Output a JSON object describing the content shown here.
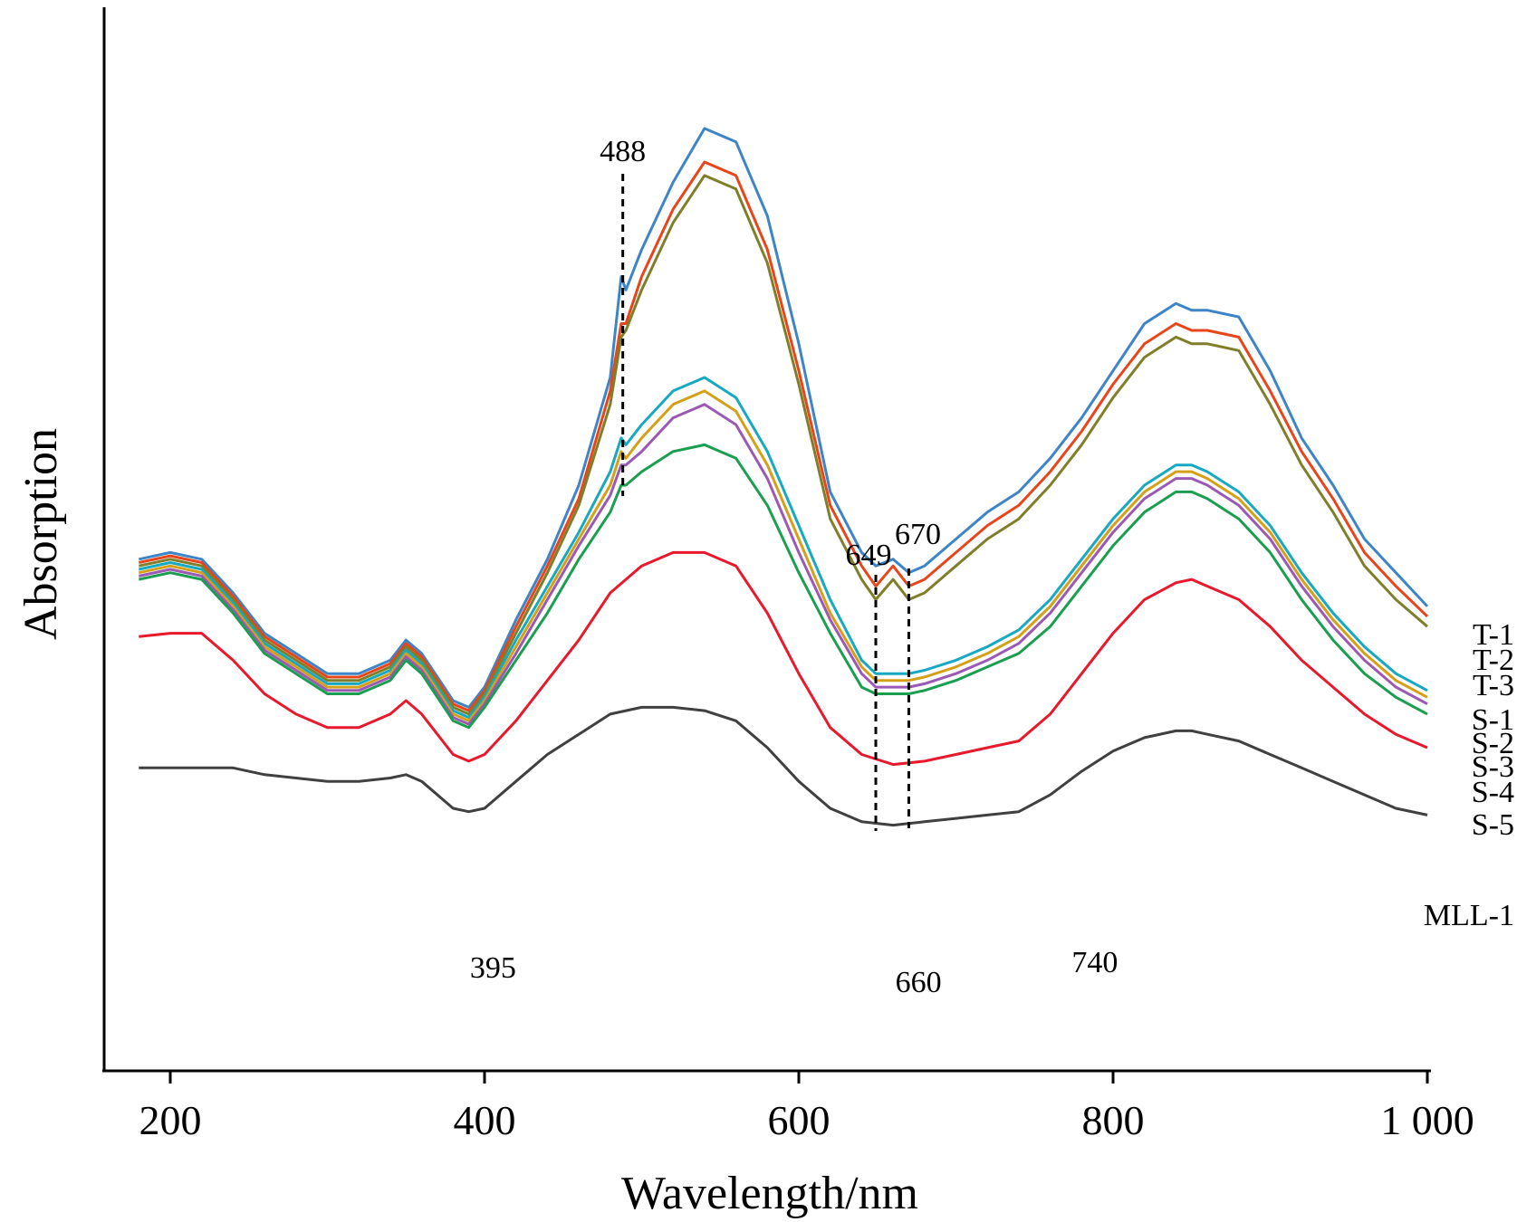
{
  "chart_data": {
    "type": "line",
    "title": "",
    "xlabel": "Wavelength/nm",
    "ylabel": "Absorption",
    "xlim": [
      180,
      1000
    ],
    "xticks": [
      200,
      400,
      600,
      800,
      1000
    ],
    "xtick_labels": [
      "200",
      "400",
      "600",
      "800",
      "1 000"
    ],
    "y_ticks_shown": false,
    "ylim": [
      -0.1,
      1.48
    ],
    "grid": false,
    "legend": "labels at right end of each curve",
    "series": [
      {
        "name": "T-1",
        "color": "#3d85c6",
        "x": [
          180,
          200,
          220,
          240,
          260,
          280,
          300,
          320,
          340,
          350,
          360,
          380,
          390,
          400,
          420,
          440,
          460,
          480,
          487,
          490,
          500,
          520,
          540,
          560,
          580,
          600,
          620,
          640,
          649,
          660,
          670,
          680,
          700,
          720,
          740,
          760,
          780,
          800,
          820,
          840,
          850,
          860,
          880,
          900,
          920,
          940,
          960,
          980,
          1000
        ],
        "y": [
          0.66,
          0.67,
          0.66,
          0.61,
          0.55,
          0.52,
          0.49,
          0.49,
          0.51,
          0.54,
          0.52,
          0.45,
          0.44,
          0.47,
          0.57,
          0.66,
          0.77,
          0.93,
          1.08,
          1.06,
          1.12,
          1.22,
          1.3,
          1.28,
          1.17,
          0.98,
          0.76,
          0.67,
          0.65,
          0.66,
          0.64,
          0.65,
          0.69,
          0.73,
          0.76,
          0.81,
          0.87,
          0.94,
          1.01,
          1.04,
          1.03,
          1.03,
          1.02,
          0.94,
          0.84,
          0.77,
          0.69,
          0.64,
          0.59
        ]
      },
      {
        "name": "T-2",
        "color": "#e8461a",
        "x": [
          180,
          200,
          220,
          240,
          260,
          280,
          300,
          320,
          340,
          350,
          360,
          380,
          390,
          400,
          420,
          440,
          460,
          480,
          487,
          490,
          500,
          520,
          540,
          560,
          580,
          600,
          620,
          640,
          649,
          660,
          670,
          680,
          700,
          720,
          740,
          760,
          780,
          800,
          820,
          840,
          850,
          860,
          880,
          900,
          920,
          940,
          960,
          980,
          1000
        ],
        "y": [
          0.655,
          0.665,
          0.655,
          0.605,
          0.545,
          0.515,
          0.485,
          0.485,
          0.505,
          0.535,
          0.515,
          0.445,
          0.435,
          0.465,
          0.56,
          0.65,
          0.75,
          0.91,
          1.01,
          1.01,
          1.08,
          1.18,
          1.25,
          1.23,
          1.12,
          0.94,
          0.74,
          0.65,
          0.62,
          0.65,
          0.62,
          0.63,
          0.67,
          0.71,
          0.74,
          0.79,
          0.85,
          0.92,
          0.98,
          1.01,
          1.0,
          1.0,
          0.99,
          0.91,
          0.82,
          0.75,
          0.67,
          0.62,
          0.575
        ]
      },
      {
        "name": "T-3",
        "color": "#7f7f2a",
        "x": [
          180,
          200,
          220,
          240,
          260,
          280,
          300,
          320,
          340,
          350,
          360,
          380,
          390,
          400,
          420,
          440,
          460,
          480,
          487,
          490,
          500,
          520,
          540,
          560,
          580,
          600,
          620,
          640,
          649,
          660,
          670,
          680,
          700,
          720,
          740,
          760,
          780,
          800,
          820,
          840,
          850,
          860,
          880,
          900,
          920,
          940,
          960,
          980,
          1000
        ],
        "y": [
          0.65,
          0.66,
          0.65,
          0.6,
          0.54,
          0.51,
          0.48,
          0.48,
          0.5,
          0.53,
          0.51,
          0.44,
          0.43,
          0.46,
          0.55,
          0.64,
          0.74,
          0.89,
          0.99,
          1.0,
          1.06,
          1.16,
          1.23,
          1.21,
          1.1,
          0.92,
          0.72,
          0.63,
          0.6,
          0.63,
          0.6,
          0.61,
          0.65,
          0.69,
          0.72,
          0.77,
          0.83,
          0.9,
          0.96,
          0.99,
          0.98,
          0.98,
          0.97,
          0.89,
          0.8,
          0.73,
          0.65,
          0.6,
          0.56
        ]
      },
      {
        "name": "S-1",
        "color": "#17a9c2",
        "x": [
          180,
          200,
          220,
          240,
          260,
          280,
          300,
          320,
          340,
          350,
          360,
          380,
          390,
          400,
          420,
          440,
          460,
          480,
          487,
          490,
          500,
          520,
          540,
          560,
          580,
          600,
          620,
          640,
          649,
          660,
          670,
          680,
          700,
          720,
          740,
          760,
          780,
          800,
          820,
          840,
          850,
          860,
          880,
          900,
          920,
          940,
          960,
          980,
          1000
        ],
        "y": [
          0.645,
          0.655,
          0.645,
          0.595,
          0.535,
          0.505,
          0.475,
          0.475,
          0.495,
          0.525,
          0.505,
          0.435,
          0.425,
          0.455,
          0.54,
          0.62,
          0.7,
          0.79,
          0.84,
          0.83,
          0.86,
          0.91,
          0.93,
          0.9,
          0.82,
          0.71,
          0.6,
          0.51,
          0.49,
          0.49,
          0.49,
          0.495,
          0.51,
          0.53,
          0.555,
          0.6,
          0.66,
          0.72,
          0.77,
          0.8,
          0.8,
          0.79,
          0.76,
          0.71,
          0.64,
          0.58,
          0.53,
          0.49,
          0.465
        ]
      },
      {
        "name": "S-2",
        "color": "#d4a017",
        "x": [
          180,
          200,
          220,
          240,
          260,
          280,
          300,
          320,
          340,
          350,
          360,
          380,
          390,
          400,
          420,
          440,
          460,
          480,
          487,
          490,
          500,
          520,
          540,
          560,
          580,
          600,
          620,
          640,
          649,
          660,
          670,
          680,
          700,
          720,
          740,
          760,
          780,
          800,
          820,
          840,
          850,
          860,
          880,
          900,
          920,
          940,
          960,
          980,
          1000
        ],
        "y": [
          0.64,
          0.65,
          0.64,
          0.59,
          0.53,
          0.5,
          0.47,
          0.47,
          0.49,
          0.52,
          0.5,
          0.43,
          0.42,
          0.45,
          0.53,
          0.61,
          0.69,
          0.77,
          0.82,
          0.81,
          0.84,
          0.89,
          0.91,
          0.88,
          0.8,
          0.69,
          0.58,
          0.5,
          0.48,
          0.48,
          0.48,
          0.485,
          0.5,
          0.52,
          0.545,
          0.59,
          0.65,
          0.71,
          0.76,
          0.79,
          0.79,
          0.78,
          0.75,
          0.7,
          0.63,
          0.57,
          0.52,
          0.48,
          0.455
        ]
      },
      {
        "name": "S-3",
        "color": "#9b59b6",
        "x": [
          180,
          200,
          220,
          240,
          260,
          280,
          300,
          320,
          340,
          350,
          360,
          380,
          390,
          400,
          420,
          440,
          460,
          480,
          487,
          490,
          500,
          520,
          540,
          560,
          580,
          600,
          620,
          640,
          649,
          660,
          670,
          680,
          700,
          720,
          740,
          760,
          780,
          800,
          820,
          840,
          850,
          860,
          880,
          900,
          920,
          940,
          960,
          980,
          1000
        ],
        "y": [
          0.635,
          0.645,
          0.635,
          0.585,
          0.525,
          0.495,
          0.465,
          0.465,
          0.485,
          0.515,
          0.495,
          0.425,
          0.415,
          0.445,
          0.52,
          0.6,
          0.68,
          0.755,
          0.8,
          0.8,
          0.82,
          0.87,
          0.89,
          0.86,
          0.78,
          0.67,
          0.57,
          0.49,
          0.47,
          0.47,
          0.47,
          0.475,
          0.49,
          0.51,
          0.535,
          0.58,
          0.64,
          0.7,
          0.75,
          0.78,
          0.78,
          0.77,
          0.74,
          0.69,
          0.62,
          0.56,
          0.51,
          0.47,
          0.445
        ]
      },
      {
        "name": "S-4",
        "color": "#1a9e50",
        "x": [
          180,
          200,
          220,
          240,
          260,
          280,
          300,
          320,
          340,
          350,
          360,
          380,
          390,
          400,
          420,
          440,
          460,
          480,
          487,
          490,
          500,
          520,
          540,
          560,
          580,
          600,
          620,
          640,
          649,
          660,
          670,
          680,
          700,
          720,
          740,
          760,
          780,
          800,
          820,
          840,
          850,
          860,
          880,
          900,
          920,
          940,
          960,
          980,
          1000
        ],
        "y": [
          0.63,
          0.64,
          0.63,
          0.58,
          0.52,
          0.49,
          0.46,
          0.46,
          0.48,
          0.51,
          0.49,
          0.42,
          0.41,
          0.44,
          0.51,
          0.58,
          0.66,
          0.73,
          0.77,
          0.77,
          0.79,
          0.82,
          0.83,
          0.81,
          0.74,
          0.64,
          0.55,
          0.47,
          0.46,
          0.46,
          0.46,
          0.465,
          0.48,
          0.5,
          0.52,
          0.56,
          0.62,
          0.68,
          0.73,
          0.76,
          0.76,
          0.75,
          0.72,
          0.67,
          0.6,
          0.54,
          0.49,
          0.455,
          0.43
        ]
      },
      {
        "name": "S-5",
        "color": "#e8192c",
        "x": [
          180,
          200,
          220,
          240,
          260,
          280,
          300,
          320,
          340,
          350,
          360,
          380,
          390,
          400,
          420,
          440,
          460,
          480,
          500,
          520,
          540,
          560,
          580,
          600,
          620,
          640,
          660,
          680,
          700,
          720,
          740,
          760,
          780,
          800,
          820,
          840,
          850,
          860,
          880,
          900,
          920,
          940,
          960,
          980,
          1000
        ],
        "y": [
          0.545,
          0.55,
          0.55,
          0.51,
          0.46,
          0.43,
          0.41,
          0.41,
          0.43,
          0.45,
          0.43,
          0.37,
          0.36,
          0.37,
          0.42,
          0.48,
          0.54,
          0.61,
          0.65,
          0.67,
          0.67,
          0.65,
          0.58,
          0.49,
          0.41,
          0.37,
          0.355,
          0.36,
          0.37,
          0.38,
          0.39,
          0.43,
          0.49,
          0.55,
          0.6,
          0.625,
          0.63,
          0.62,
          0.6,
          0.56,
          0.51,
          0.47,
          0.43,
          0.4,
          0.38
        ]
      },
      {
        "name": "MLL-1",
        "color": "#404040",
        "x": [
          180,
          200,
          220,
          240,
          260,
          280,
          300,
          320,
          340,
          350,
          360,
          380,
          390,
          400,
          420,
          440,
          460,
          480,
          500,
          520,
          540,
          560,
          580,
          600,
          620,
          640,
          660,
          680,
          700,
          720,
          740,
          760,
          780,
          800,
          820,
          840,
          850,
          860,
          880,
          900,
          920,
          940,
          960,
          980,
          1000
        ],
        "y": [
          0.35,
          0.35,
          0.35,
          0.35,
          0.34,
          0.335,
          0.33,
          0.33,
          0.335,
          0.34,
          0.33,
          0.29,
          0.285,
          0.29,
          0.33,
          0.37,
          0.4,
          0.43,
          0.44,
          0.44,
          0.435,
          0.42,
          0.38,
          0.33,
          0.29,
          0.27,
          0.265,
          0.27,
          0.275,
          0.28,
          0.285,
          0.31,
          0.345,
          0.375,
          0.395,
          0.405,
          0.405,
          0.4,
          0.39,
          0.37,
          0.35,
          0.33,
          0.31,
          0.29,
          0.28
        ]
      }
    ],
    "reference_lines": [
      {
        "x": 488,
        "label": "488"
      },
      {
        "x": 649,
        "label": "649"
      },
      {
        "x": 670,
        "label": "670"
      }
    ],
    "annotations": [
      {
        "label": "395",
        "x": 395
      },
      {
        "label": "660",
        "x": 660
      },
      {
        "label": "740",
        "x": 740
      }
    ]
  }
}
